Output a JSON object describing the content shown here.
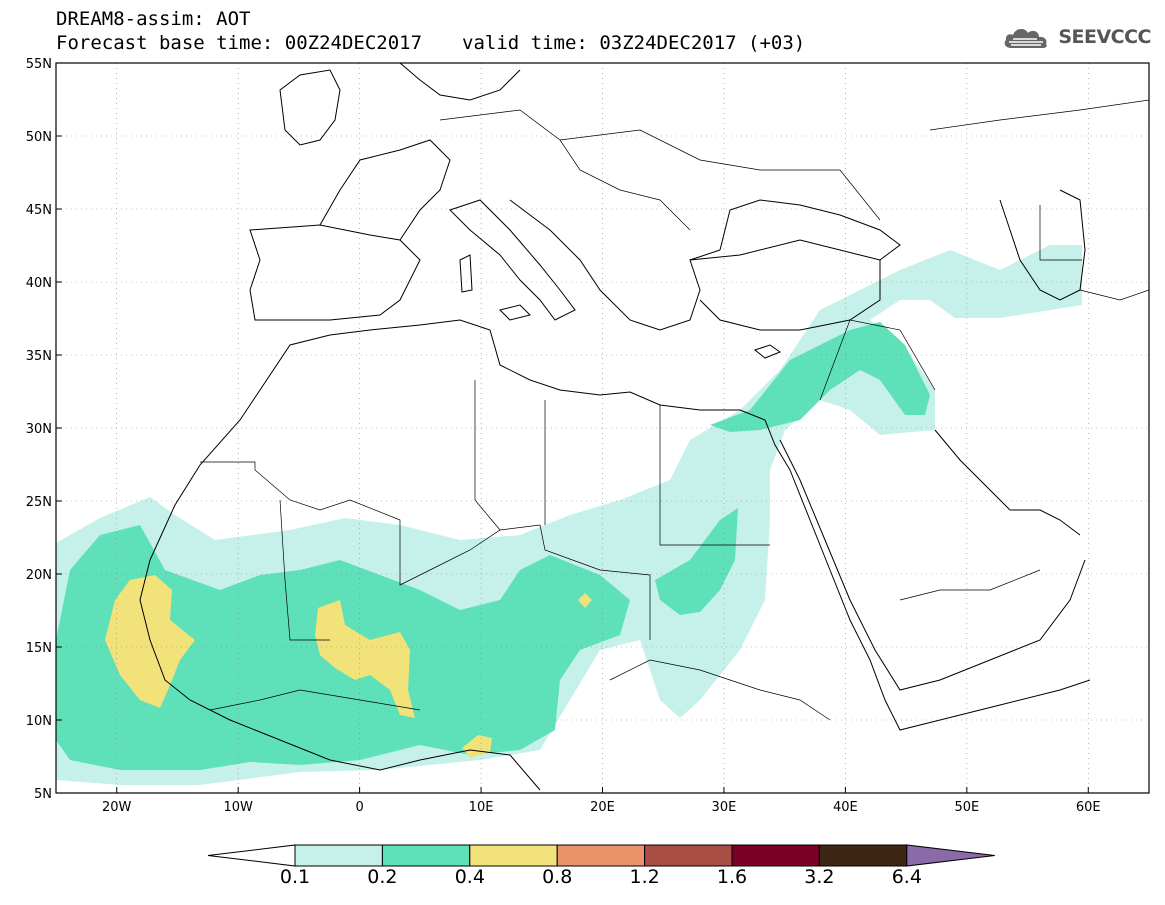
{
  "header": {
    "title": "DREAM8-assim: AOT",
    "base_time": "Forecast base time: 00Z24DEC2017",
    "valid_time": "valid time: 03Z24DEC2017 (+03)"
  },
  "logo": {
    "text": "SEEVCCC",
    "icon": "cloud-icon",
    "color": "#555555"
  },
  "map": {
    "lon_range": [
      -25,
      65
    ],
    "lat_range": [
      5,
      55
    ],
    "lon_ticks": [
      {
        "value": -20,
        "label": "20W"
      },
      {
        "value": -10,
        "label": "10W"
      },
      {
        "value": 0,
        "label": "0"
      },
      {
        "value": 10,
        "label": "10E"
      },
      {
        "value": 20,
        "label": "20E"
      },
      {
        "value": 30,
        "label": "30E"
      },
      {
        "value": 40,
        "label": "40E"
      },
      {
        "value": 50,
        "label": "50E"
      },
      {
        "value": 60,
        "label": "60E"
      }
    ],
    "lat_ticks": [
      {
        "value": 55,
        "label": "55N"
      },
      {
        "value": 50,
        "label": "50N"
      },
      {
        "value": 45,
        "label": "45N"
      },
      {
        "value": 40,
        "label": "40N"
      },
      {
        "value": 35,
        "label": "35N"
      },
      {
        "value": 30,
        "label": "30N"
      },
      {
        "value": 25,
        "label": "25N"
      },
      {
        "value": 20,
        "label": "20N"
      },
      {
        "value": 15,
        "label": "15N"
      },
      {
        "value": 10,
        "label": "10N"
      },
      {
        "value": 5,
        "label": "5N"
      }
    ],
    "gridlines": true
  },
  "colorbar": {
    "levels": [
      "0.1",
      "0.2",
      "0.4",
      "0.8",
      "1.2",
      "1.6",
      "3.2",
      "6.4"
    ],
    "colors": [
      "#ffffff",
      "#c6f1eb",
      "#5ee1b8",
      "#f2e27a",
      "#e9936a",
      "#a84e44",
      "#7a0026",
      "#3d2614",
      "#8a6aa8"
    ]
  },
  "aot_fields": [
    {
      "level": "0.1",
      "color": "#c6f1eb"
    },
    {
      "level": "0.2",
      "color": "#5ee1b8"
    },
    {
      "level": "0.4",
      "color": "#f2e27a"
    }
  ]
}
